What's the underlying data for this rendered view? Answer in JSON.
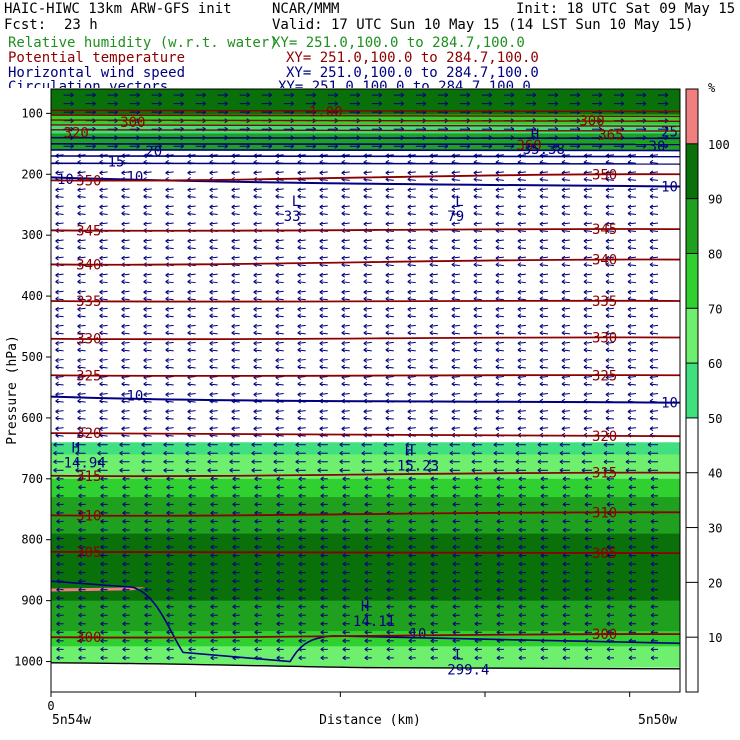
{
  "header": {
    "model": "HAIC-HIWC 13km ARW-GFS init",
    "center": "NCAR/MMM",
    "init": "Init: 18 UTC Sat 09 May 15",
    "fcst_label": "Fcst:",
    "fcst_value": "23 h",
    "valid": "Valid: 17 UTC Sun 10 May 15 (14 LST Sun 10 May 15)"
  },
  "fields": [
    {
      "name": "Relative humidity (w.r.t. water)",
      "xy": "XY= 251.0,100.0 to 284.7,100.0",
      "color": "#1f8f1f"
    },
    {
      "name": "Potential temperature",
      "xy": "XY= 251.0,100.0 to 284.7,100.0",
      "color": "#8b0000"
    },
    {
      "name": "Horizontal wind speed",
      "xy": "XY= 251.0,100.0 to 284.7,100.0",
      "color": "#000080"
    },
    {
      "name": "Circulation vectors",
      "xy": "XY= 251.0,100.0 to 284.7,100.0",
      "color": "#000080"
    }
  ],
  "colorbar": {
    "unit": "%",
    "labels": [
      "10",
      "20",
      "30",
      "40",
      "50",
      "60",
      "70",
      "80",
      "90",
      "100"
    ],
    "bins": [
      {
        "from": 0,
        "to": 50,
        "color": "#ffffff"
      },
      {
        "from": 50,
        "to": 60,
        "color": "#40e080"
      },
      {
        "from": 60,
        "to": 70,
        "color": "#6ef06e"
      },
      {
        "from": 70,
        "to": 80,
        "color": "#30d030"
      },
      {
        "from": 80,
        "to": 90,
        "color": "#1fa01f"
      },
      {
        "from": 90,
        "to": 100,
        "color": "#0a700a"
      },
      {
        "from": 100,
        "to": 110,
        "color": "#f08080"
      }
    ]
  },
  "chart_data": {
    "type": "cross-section",
    "ylabel": "Pressure (hPa)",
    "xlabel": "Distance (km)",
    "y_ticks": [
      100,
      200,
      300,
      400,
      500,
      600,
      700,
      800,
      900,
      1000
    ],
    "ylim": [
      1050,
      60
    ],
    "x_tick_label": "0",
    "x_left_label": "5n54w",
    "x_right_label": "5n50w",
    "theta_contours": [
      {
        "value": 350,
        "label": "350",
        "p_left": 210,
        "p_right": 200
      },
      {
        "value": 345,
        "label": "345",
        "p_left": 292,
        "p_right": 290
      },
      {
        "value": 340,
        "label": "340",
        "p_left": 348,
        "p_right": 340
      },
      {
        "value": 335,
        "label": "335",
        "p_left": 408,
        "p_right": 408
      },
      {
        "value": 330,
        "label": "330",
        "p_left": 470,
        "p_right": 468
      },
      {
        "value": 325,
        "label": "325",
        "p_left": 530,
        "p_right": 530
      },
      {
        "value": 320,
        "label": "320",
        "p_left": 625,
        "p_right": 630
      },
      {
        "value": 315,
        "label": "315",
        "p_left": 695,
        "p_right": 690
      },
      {
        "value": 310,
        "label": "310",
        "p_left": 760,
        "p_right": 755
      },
      {
        "value": 305,
        "label": "305",
        "p_left": 820,
        "p_right": 822
      },
      {
        "value": 300,
        "label": "300",
        "p_left": 960,
        "p_right": 955
      }
    ],
    "theta_labels_upper": [
      "300",
      "320",
      "20",
      "360",
      "365"
    ],
    "wind_labels": [
      "10",
      "15",
      "20",
      "25",
      "30"
    ],
    "wind_contours": [
      {
        "value": 10,
        "label": "10",
        "p_left": 205,
        "p_right": 220
      },
      {
        "value": 10,
        "label": "10",
        "p_left": 565,
        "p_right": 575
      }
    ],
    "lows": [
      {
        "mark": "L",
        "value": "33",
        "x": 0.37,
        "p": 260
      },
      {
        "mark": "L",
        "value": "79",
        "x": 0.63,
        "p": 260
      },
      {
        "mark": "L",
        "value": "299.4",
        "x": 0.63,
        "p": 1005
      }
    ],
    "highs": [
      {
        "mark": "H",
        "value": "14.94",
        "x": 0.02,
        "p": 665
      },
      {
        "mark": "H",
        "value": "15.23",
        "x": 0.55,
        "p": 670
      },
      {
        "mark": "H",
        "value": "14.11",
        "x": 0.48,
        "p": 925
      },
      {
        "mark": "H",
        "value": "35.38",
        "x": 0.75,
        "p": 150
      }
    ],
    "pressure_label_top": "1.00"
  }
}
